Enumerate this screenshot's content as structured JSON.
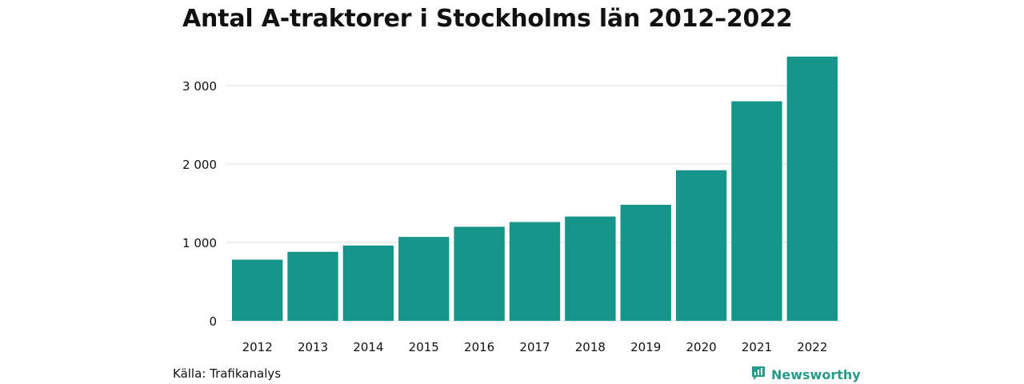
{
  "title": "Antal A-traktorer i Stockholms län 2012–2022",
  "source": "Källa: Trafikanalys",
  "brand": {
    "name": "Newsworthy",
    "icon": "newsworthy-logo-icon",
    "color": "#2a9a8b"
  },
  "chart_data": {
    "type": "bar",
    "categories": [
      "2012",
      "2013",
      "2014",
      "2015",
      "2016",
      "2017",
      "2018",
      "2019",
      "2020",
      "2021",
      "2022"
    ],
    "values": [
      780,
      880,
      960,
      1070,
      1200,
      1260,
      1330,
      1480,
      1920,
      2800,
      3370
    ],
    "ylim": [
      0,
      3400
    ],
    "yticks": [
      0,
      1000,
      2000,
      3000
    ],
    "ytick_labels": [
      "0",
      "1 000",
      "2 000",
      "3 000"
    ],
    "grid": true,
    "bar_color": "#16968a",
    "grid_color": "#dddddd"
  }
}
